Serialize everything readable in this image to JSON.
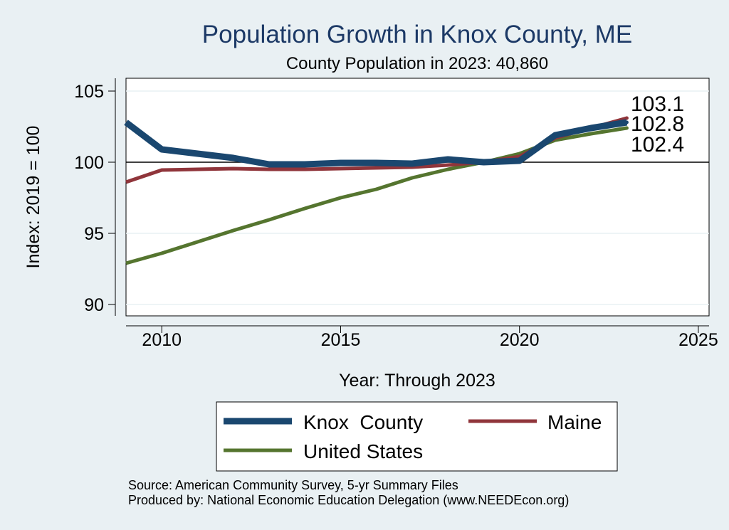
{
  "chart_data": {
    "type": "line",
    "title": "Population Growth in Knox County, ME",
    "subtitle": "County Population in 2023: 40,860",
    "xlabel": "Year: Through 2023",
    "ylabel": "Index: 2019 = 100",
    "xlim": [
      2009,
      2025.3
    ],
    "ylim": [
      89.2,
      105.9
    ],
    "x_ticks": [
      2010,
      2015,
      2020,
      2025
    ],
    "y_ticks": [
      90,
      95,
      100,
      105
    ],
    "reference_line": 100,
    "x": [
      2009,
      2010,
      2011,
      2012,
      2013,
      2014,
      2015,
      2016,
      2017,
      2018,
      2019,
      2020,
      2021,
      2022,
      2023
    ],
    "series": [
      {
        "name": "Knox  County",
        "color": "#1a476f",
        "values": [
          102.8,
          100.9,
          100.6,
          100.3,
          99.85,
          99.85,
          99.95,
          99.95,
          99.9,
          100.2,
          100.0,
          100.1,
          101.9,
          102.4,
          102.8
        ],
        "end_label": "102.8"
      },
      {
        "name": "Maine",
        "color": "#90353b",
        "values": [
          98.6,
          99.45,
          99.5,
          99.55,
          99.5,
          99.5,
          99.55,
          99.6,
          99.65,
          99.8,
          100.0,
          100.4,
          101.7,
          102.4,
          103.1
        ],
        "end_label": "103.1"
      },
      {
        "name": "United States",
        "color": "#55752f",
        "values": [
          92.9,
          93.6,
          94.4,
          95.2,
          95.95,
          96.75,
          97.5,
          98.1,
          98.9,
          99.5,
          100.0,
          100.6,
          101.55,
          102.0,
          102.4
        ],
        "end_label": "102.4"
      }
    ]
  },
  "source_lines": [
    "Source: American Community Survey, 5-yr Summary Files",
    "Produced by: National Economic Education Delegation (www.NEEDEcon.org)"
  ]
}
